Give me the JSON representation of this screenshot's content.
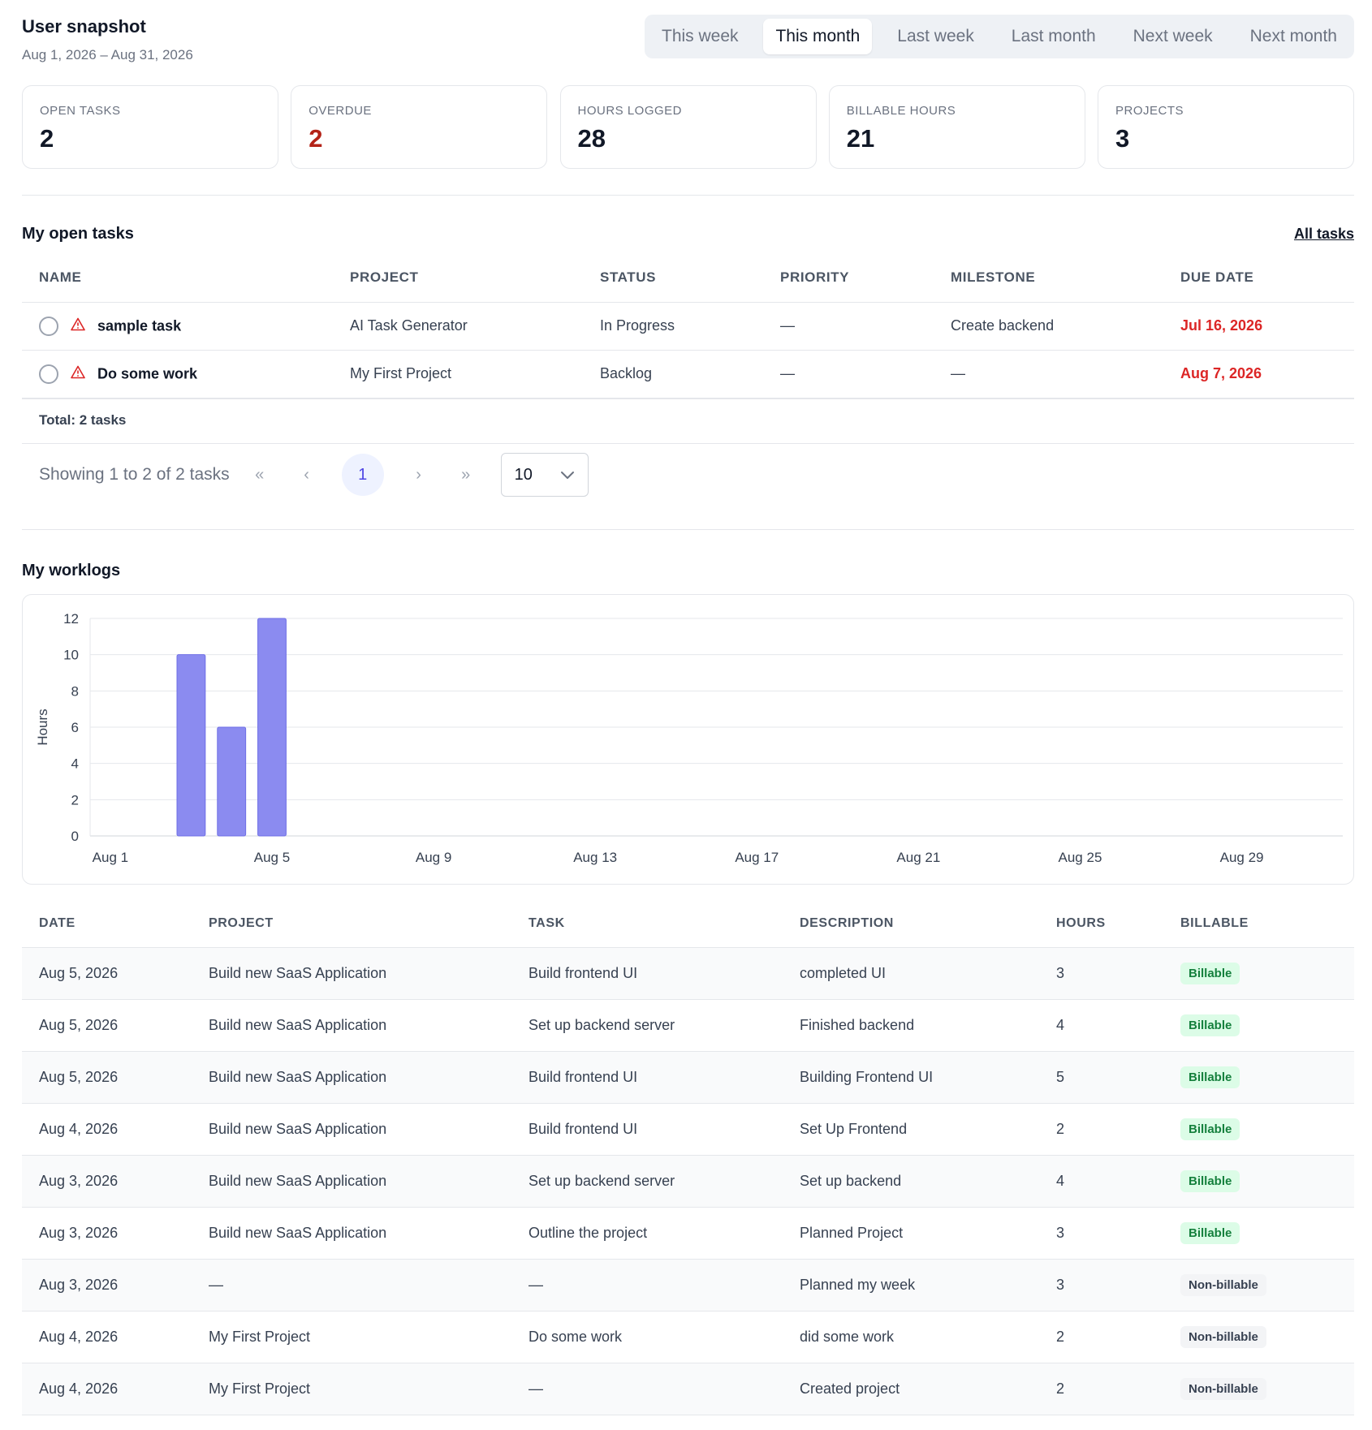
{
  "header": {
    "title": "User snapshot",
    "date_range": "Aug 1, 2026 – Aug 31, 2026"
  },
  "range_tabs": [
    {
      "label": "This week",
      "active": false
    },
    {
      "label": "This month",
      "active": true
    },
    {
      "label": "Last week",
      "active": false
    },
    {
      "label": "Last month",
      "active": false
    },
    {
      "label": "Next week",
      "active": false
    },
    {
      "label": "Next month",
      "active": false
    }
  ],
  "stats": [
    {
      "label": "OPEN TASKS",
      "value": "2"
    },
    {
      "label": "OVERDUE",
      "value": "2"
    },
    {
      "label": "HOURS LOGGED",
      "value": "28"
    },
    {
      "label": "BILLABLE HOURS",
      "value": "21"
    },
    {
      "label": "PROJECTS",
      "value": "3"
    }
  ],
  "open_tasks": {
    "title": "My open tasks",
    "all_link": "All tasks",
    "columns": [
      "NAME",
      "PROJECT",
      "STATUS",
      "PRIORITY",
      "MILESTONE",
      "DUE DATE"
    ],
    "rows": [
      {
        "name": "sample task",
        "project": "AI Task Generator",
        "status": "In Progress",
        "priority": "—",
        "milestone": "Create backend",
        "due": "Jul 16, 2026"
      },
      {
        "name": "Do some work",
        "project": "My First Project",
        "status": "Backlog",
        "priority": "—",
        "milestone": "—",
        "due": "Aug 7, 2026"
      }
    ],
    "total": "Total: 2 tasks",
    "pager": {
      "summary": "Showing 1 to 2 of 2 tasks",
      "first": "«",
      "prev": "‹",
      "page": "1",
      "next": "›",
      "last": "»",
      "page_size": "10"
    }
  },
  "worklogs": {
    "title": "My worklogs",
    "columns": [
      "DATE",
      "PROJECT",
      "TASK",
      "DESCRIPTION",
      "HOURS",
      "BILLABLE"
    ],
    "rows": [
      {
        "date": "Aug 5, 2026",
        "project": "Build new SaaS Application",
        "task": "Build frontend UI",
        "description": "completed UI",
        "hours": "3",
        "billable": "Billable"
      },
      {
        "date": "Aug 5, 2026",
        "project": "Build new SaaS Application",
        "task": "Set up backend server",
        "description": "Finished backend",
        "hours": "4",
        "billable": "Billable"
      },
      {
        "date": "Aug 5, 2026",
        "project": "Build new SaaS Application",
        "task": "Build frontend UI",
        "description": "Building Frontend UI",
        "hours": "5",
        "billable": "Billable"
      },
      {
        "date": "Aug 4, 2026",
        "project": "Build new SaaS Application",
        "task": "Build frontend UI",
        "description": "Set Up Frontend",
        "hours": "2",
        "billable": "Billable"
      },
      {
        "date": "Aug 3, 2026",
        "project": "Build new SaaS Application",
        "task": "Set up backend server",
        "description": "Set up backend",
        "hours": "4",
        "billable": "Billable"
      },
      {
        "date": "Aug 3, 2026",
        "project": "Build new SaaS Application",
        "task": "Outline the project",
        "description": "Planned Project",
        "hours": "3",
        "billable": "Billable"
      },
      {
        "date": "Aug 3, 2026",
        "project": "—",
        "task": "—",
        "description": "Planned my week",
        "hours": "3",
        "billable": "Non-billable"
      },
      {
        "date": "Aug 4, 2026",
        "project": "My First Project",
        "task": "Do some work",
        "description": "did some work",
        "hours": "2",
        "billable": "Non-billable"
      },
      {
        "date": "Aug 4, 2026",
        "project": "My First Project",
        "task": "—",
        "description": "Created project",
        "hours": "2",
        "billable": "Non-billable"
      }
    ]
  },
  "chart_data": {
    "type": "bar",
    "ylabel": "Hours",
    "xlabel": "",
    "ylim": [
      0,
      12
    ],
    "yticks": [
      0,
      2,
      4,
      6,
      8,
      10,
      12
    ],
    "grid": true,
    "bar_color": "#8b8bf0",
    "x_tick_labels": [
      "Aug 1",
      "Aug 5",
      "Aug 9",
      "Aug 13",
      "Aug 17",
      "Aug 21",
      "Aug 25",
      "Aug 29"
    ],
    "x_tick_days": [
      1,
      5,
      9,
      13,
      17,
      21,
      25,
      29
    ],
    "x_days": [
      1,
      2,
      3,
      4,
      5,
      6,
      7,
      8,
      9,
      10,
      11,
      12,
      13,
      14,
      15,
      16,
      17,
      18,
      19,
      20,
      21,
      22,
      23,
      24,
      25,
      26,
      27,
      28,
      29,
      30,
      31
    ],
    "values": [
      0,
      0,
      10,
      6,
      12,
      0,
      0,
      0,
      0,
      0,
      0,
      0,
      0,
      0,
      0,
      0,
      0,
      0,
      0,
      0,
      0,
      0,
      0,
      0,
      0,
      0,
      0,
      0,
      0,
      0,
      0
    ]
  }
}
